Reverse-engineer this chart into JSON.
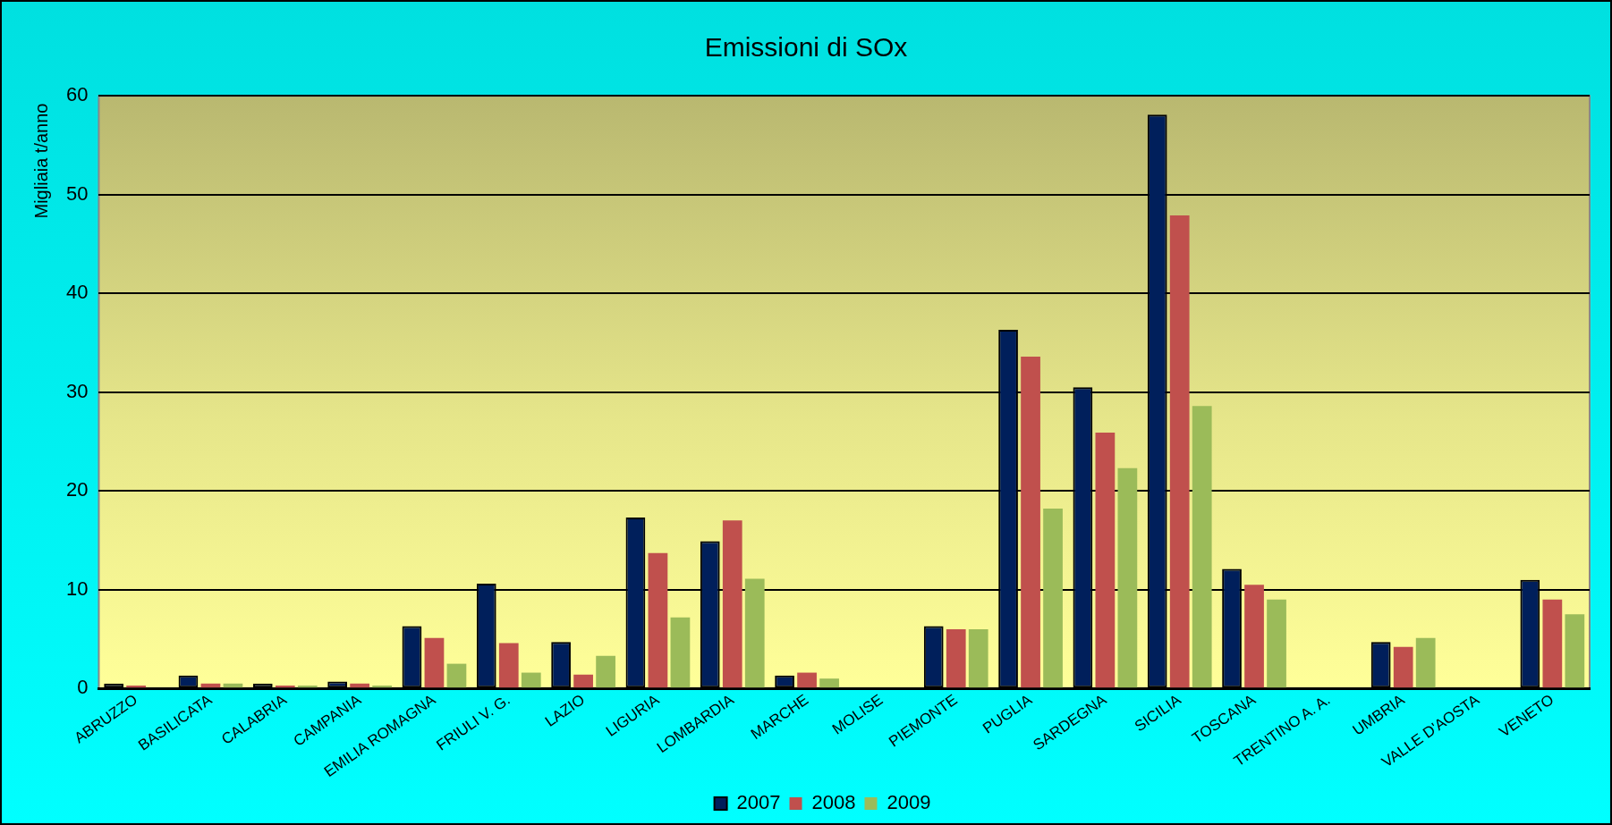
{
  "chart_data": {
    "type": "bar",
    "title": "Emissioni di SOx",
    "ylabel": "Migliaia t/anno",
    "categories": [
      "ABRUZZO",
      "BASILICATA",
      "CALABRIA",
      "CAMPANIA",
      "EMILIA ROMAGNA",
      "FRIULI V. G.",
      "LAZIO",
      "LIGURIA",
      "LOMBARDIA",
      "MARCHE",
      "MOLISE",
      "PIEMONTE",
      "PUGLIA",
      "SARDEGNA",
      "SICILIA",
      "TOSCANA",
      "TRENTINO A. A.",
      "UMBRIA",
      "VALLE D'AOSTA",
      "VENETO"
    ],
    "series": [
      {
        "name": "2007",
        "color": "#001f5b",
        "values": [
          0.5,
          1.3,
          0.5,
          0.7,
          6.3,
          10.6,
          4.7,
          17.3,
          14.9,
          1.3,
          0,
          6.3,
          36.3,
          30.5,
          58.1,
          12.1,
          0,
          4.7,
          0,
          11.0
        ]
      },
      {
        "name": "2008",
        "color": "#c0504d",
        "values": [
          0.3,
          0.5,
          0.3,
          0.5,
          5.1,
          4.6,
          1.4,
          13.7,
          17.0,
          1.6,
          0,
          6.0,
          33.6,
          25.9,
          47.9,
          10.5,
          0,
          4.2,
          0,
          9.0
        ]
      },
      {
        "name": "2009",
        "color": "#9bbb59",
        "values": [
          0,
          0.5,
          0.3,
          0.3,
          2.5,
          1.6,
          3.3,
          7.2,
          11.1,
          1.0,
          0,
          6.0,
          18.2,
          22.3,
          28.6,
          9.0,
          0,
          5.1,
          0,
          7.5
        ]
      }
    ],
    "ylim": [
      0,
      60
    ],
    "yticks": [
      0,
      10,
      20,
      30,
      40,
      50,
      60
    ],
    "grid": "y",
    "legend": "bottom"
  }
}
